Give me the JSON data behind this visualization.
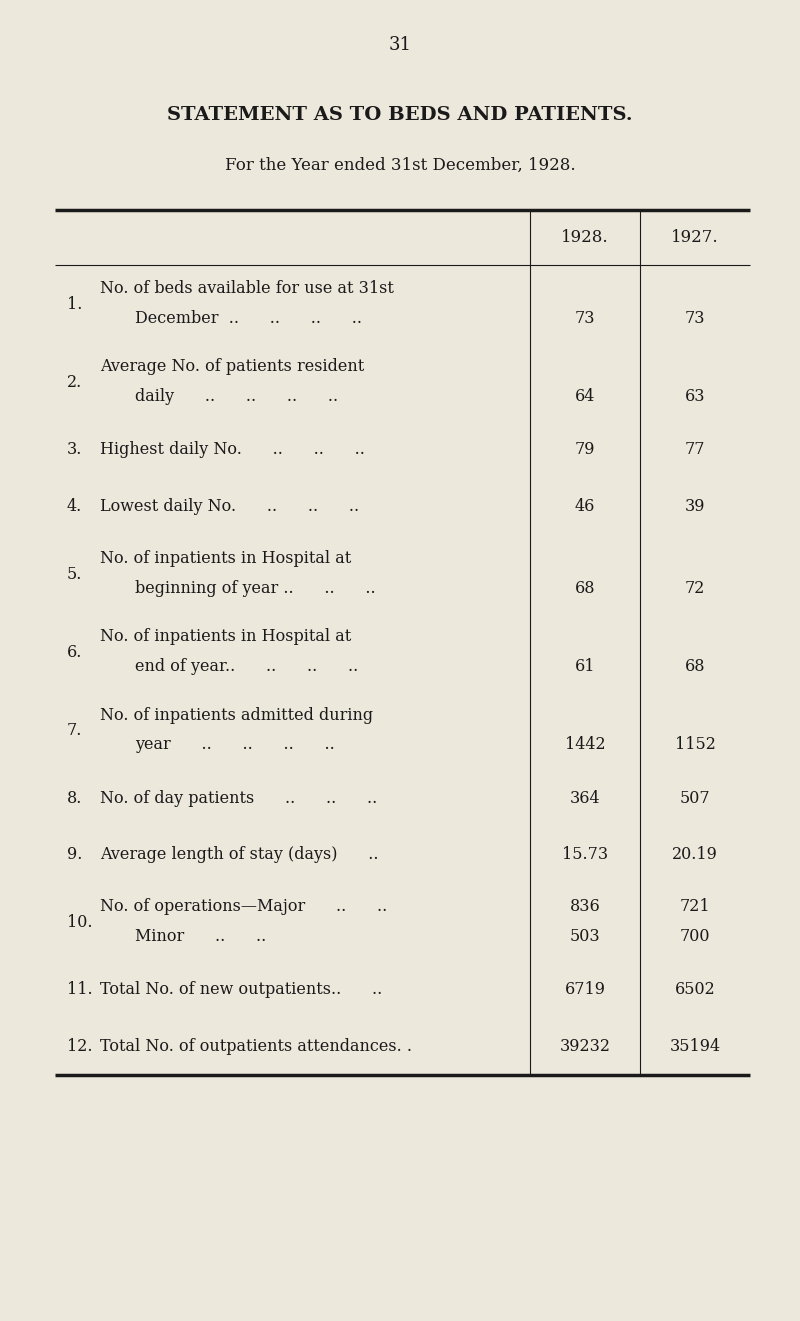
{
  "page_number": "31",
  "title": "STATEMENT AS TO BEDS AND PATIENTS.",
  "subtitle": "For the Year ended 31st December, 1928.",
  "col_headers": [
    "1928.",
    "1927."
  ],
  "background_color": "#ede8dc",
  "text_color": "#1a1a1a",
  "rows": [
    {
      "num": "1.",
      "line1": "No. of beds available for use at 31st",
      "line2": "December  ..      ..      ..      ..",
      "val1928": "73",
      "val1927": "73",
      "two_line": true,
      "ops": false
    },
    {
      "num": "2.",
      "line1": "Average No. of patients resident",
      "line2": "daily      ..      ..      ..      ..",
      "val1928": "64",
      "val1927": "63",
      "two_line": true,
      "ops": false
    },
    {
      "num": "3.",
      "line1": "Highest daily No.      ..      ..      ..",
      "line2": null,
      "val1928": "79",
      "val1927": "77",
      "two_line": false,
      "ops": false
    },
    {
      "num": "4.",
      "line1": "Lowest daily No.      ..      ..      ..",
      "line2": null,
      "val1928": "46",
      "val1927": "39",
      "two_line": false,
      "ops": false
    },
    {
      "num": "5.",
      "line1": "No. of inpatients in Hospital at",
      "line2": "beginning of year ..      ..      ..",
      "val1928": "68",
      "val1927": "72",
      "two_line": true,
      "ops": false
    },
    {
      "num": "6.",
      "line1": "No. of inpatients in Hospital at",
      "line2": "end of year..      ..      ..      ..",
      "val1928": "61",
      "val1927": "68",
      "two_line": true,
      "ops": false
    },
    {
      "num": "7.",
      "line1": "No. of inpatients admitted during",
      "line2": "year      ..      ..      ..      ..",
      "val1928": "1442",
      "val1927": "1152",
      "two_line": true,
      "ops": false
    },
    {
      "num": "8.",
      "line1": "No. of day patients      ..      ..      ..",
      "line2": null,
      "val1928": "364",
      "val1927": "507",
      "two_line": false,
      "ops": false
    },
    {
      "num": "9.",
      "line1": "Average length of stay (days)      ..",
      "line2": null,
      "val1928": "15.73",
      "val1927": "20.19",
      "two_line": false,
      "ops": false
    },
    {
      "num": "10.",
      "line1": "No. of operations—Major      ..      ..",
      "line2": "Minor      ..      ..",
      "val1928": "836",
      "val1927": "721",
      "val1928b": "503",
      "val1927b": "700",
      "two_line": true,
      "ops": true
    },
    {
      "num": "11.",
      "line1": "Total No. of new outpatients..      ..",
      "line2": null,
      "val1928": "6719",
      "val1927": "6502",
      "two_line": false,
      "ops": false
    },
    {
      "num": "12.",
      "line1": "Total No. of outpatients attendances. .",
      "line2": null,
      "val1928": "39232",
      "val1927": "35194",
      "two_line": false,
      "ops": false
    }
  ]
}
